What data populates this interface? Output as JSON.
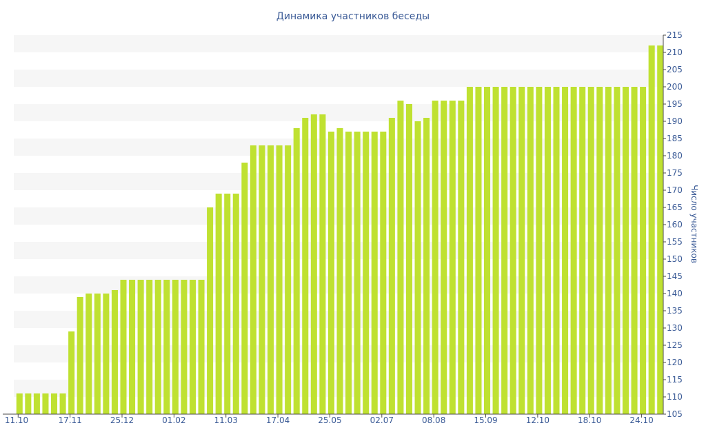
{
  "chart_data": {
    "type": "bar",
    "title": "Динамика участников беседы",
    "xlabel": "",
    "ylabel": "Число участников",
    "ylim": [
      105,
      215
    ],
    "ytick_step": 5,
    "grid": "alternating horizontal bands",
    "colors": {
      "bar": "#bfe131",
      "band": "#f6f6f6",
      "text": "#3a5a96",
      "axis": "#4a4a4a"
    },
    "x_tick_labels": [
      {
        "index": 0,
        "label": "11.10"
      },
      {
        "index": 6,
        "label": "17.11"
      },
      {
        "index": 12,
        "label": "25.12"
      },
      {
        "index": 18,
        "label": "01.02"
      },
      {
        "index": 24,
        "label": "11.03"
      },
      {
        "index": 30,
        "label": "17.04"
      },
      {
        "index": 36,
        "label": "25.05"
      },
      {
        "index": 42,
        "label": "02.07"
      },
      {
        "index": 48,
        "label": "08.08"
      },
      {
        "index": 54,
        "label": "15.09"
      },
      {
        "index": 60,
        "label": "12.10"
      },
      {
        "index": 66,
        "label": "18.10"
      },
      {
        "index": 72,
        "label": "24.10"
      }
    ],
    "values": [
      111,
      111,
      111,
      111,
      111,
      111,
      129,
      139,
      140,
      140,
      140,
      141,
      144,
      144,
      144,
      144,
      144,
      144,
      144,
      144,
      144,
      144,
      165,
      169,
      169,
      169,
      178,
      183,
      183,
      183,
      183,
      183,
      188,
      191,
      192,
      192,
      187,
      188,
      187,
      187,
      187,
      187,
      187,
      191,
      196,
      195,
      190,
      191,
      196,
      196,
      196,
      196,
      200,
      200,
      200,
      200,
      200,
      200,
      200,
      200,
      200,
      200,
      200,
      200,
      200,
      200,
      200,
      200,
      200,
      200,
      200,
      200,
      200,
      212,
      212
    ]
  }
}
